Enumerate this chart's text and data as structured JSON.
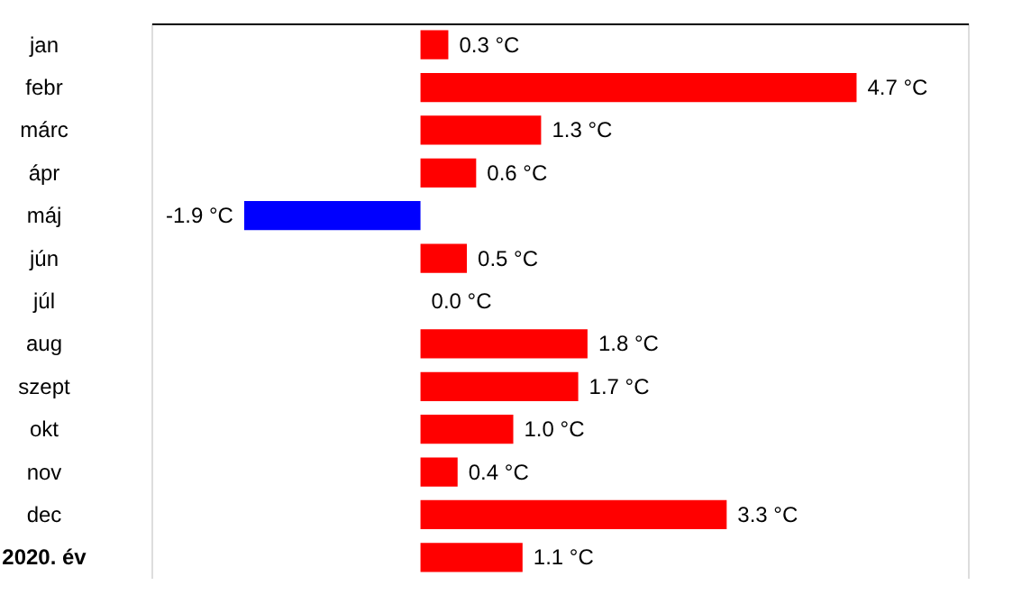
{
  "chart_data": {
    "type": "bar",
    "orientation": "horizontal",
    "categories": [
      "jan",
      "febr",
      "márc",
      "ápr",
      "máj",
      "jún",
      "júl",
      "aug",
      "szept",
      "okt",
      "nov",
      "dec",
      "2020. év"
    ],
    "values": [
      0.3,
      4.7,
      1.3,
      0.6,
      -1.9,
      0.5,
      0.0,
      1.8,
      1.7,
      1.0,
      0.4,
      3.3,
      1.1
    ],
    "colors": [
      "#ff0000",
      "#ff0000",
      "#ff0000",
      "#ff0000",
      "#0000ff",
      "#ff0000",
      "#ff0000",
      "#ff0000",
      "#ff0000",
      "#ff0000",
      "#ff0000",
      "#ff0000",
      "#ff0000"
    ],
    "value_labels": [
      "0.3 °C",
      "4.7 °C",
      "1.3 °C",
      "0.6 °C",
      "-1.9 °C",
      "0.5 °C",
      "0.0 °C",
      "1.8 °C",
      "1.7 °C",
      "1.0 °C",
      "0.4 °C",
      "3.3 °C",
      "1.1 °C"
    ],
    "xlim": [
      -2.9,
      5.9
    ],
    "tick_labels": "y"
  }
}
